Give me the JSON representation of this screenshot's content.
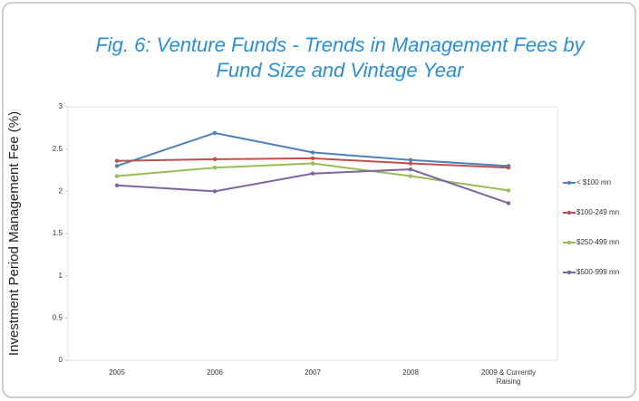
{
  "chart_data": {
    "type": "line",
    "title": "Fig. 6: Venture Funds - Trends in Management Fees by Fund Size and Vintage Year",
    "y_label": "Investment Period Management Fee (%)",
    "categories": [
      "2005",
      "2006",
      "2007",
      "2008",
      "2009 & Currently Raising"
    ],
    "series": [
      {
        "name": "< $100 mn",
        "color": "#4f81bd",
        "values": [
          2.3,
          2.69,
          2.46,
          2.37,
          2.3
        ]
      },
      {
        "name": "$100-249 mn",
        "color": "#c0504d",
        "values": [
          2.36,
          2.38,
          2.39,
          2.33,
          2.28
        ]
      },
      {
        "name": "$250-499 mn",
        "color": "#9bbb59",
        "values": [
          2.18,
          2.28,
          2.33,
          2.18,
          2.01
        ]
      },
      {
        "name": "$500-999 mn",
        "color": "#8064a2",
        "values": [
          2.07,
          2.0,
          2.21,
          2.26,
          1.86
        ]
      }
    ],
    "ylim": [
      0,
      3
    ],
    "yticks": [
      0,
      0.5,
      1,
      1.5,
      2,
      2.5,
      3
    ],
    "legend": "right"
  }
}
